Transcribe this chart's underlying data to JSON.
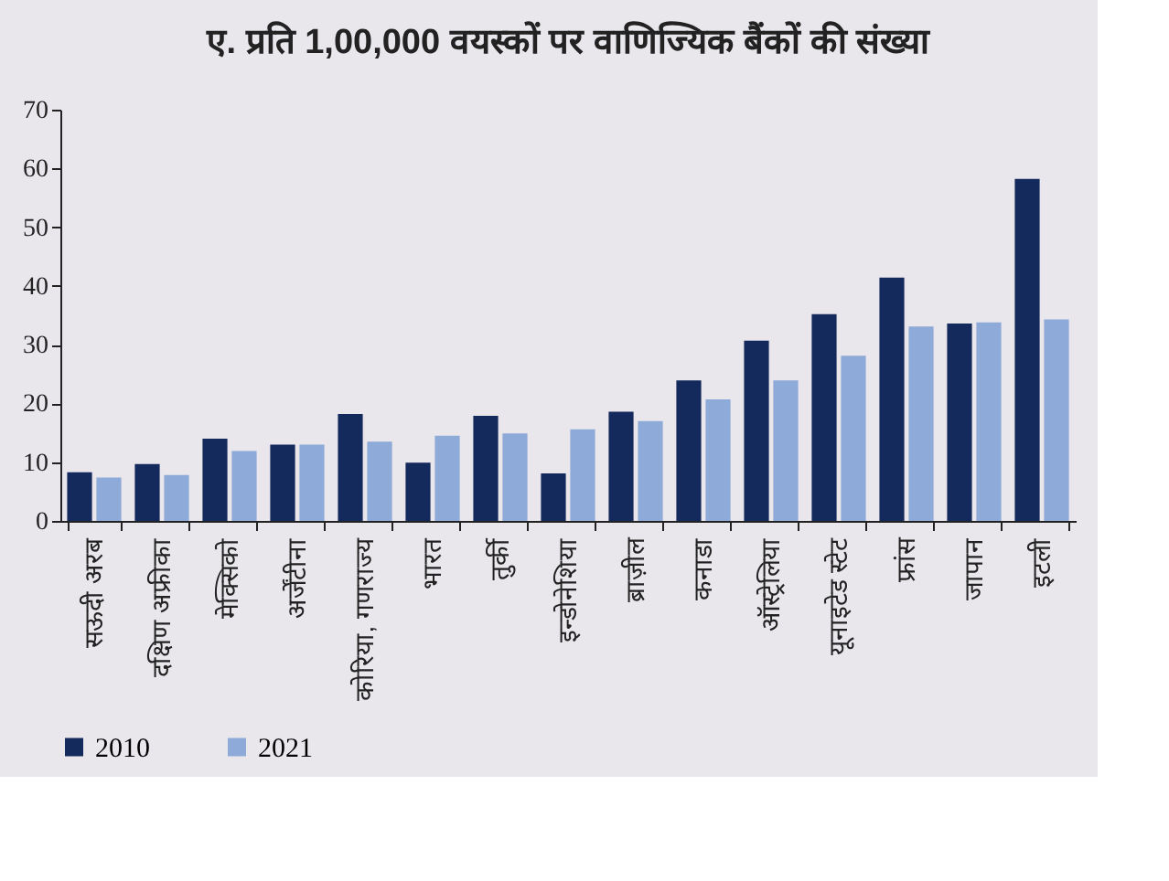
{
  "chart_data": {
    "type": "bar",
    "title": "ए. प्रति 1,00,000 वयस्कों पर वाणिज्यिक बैंकों की संख्या",
    "categories": [
      "सऊदी अरब",
      "दक्षिण अफ्रीका",
      "मेक्सिको",
      "अर्जेंटीना",
      "कोरिया, गणराज्य",
      "भारत",
      "तुर्की",
      "इन्डोनेशिया",
      "ब्राज़ील",
      "कनाडा",
      "ऑस्ट्रेलिया",
      "यूनाइटेड स्टेट",
      "फ्रांस",
      "जापान",
      "इटली"
    ],
    "series": [
      {
        "name": "2010",
        "color": "#142a5c",
        "values": [
          8.3,
          9.7,
          14.0,
          13.0,
          18.2,
          9.9,
          17.9,
          8.1,
          18.6,
          23.9,
          30.7,
          35.2,
          41.4,
          33.6,
          58.2
        ]
      },
      {
        "name": "2021",
        "color": "#8eaad8",
        "values": [
          7.4,
          7.8,
          11.9,
          13.0,
          13.5,
          14.5,
          14.9,
          15.6,
          17.0,
          20.7,
          23.9,
          28.1,
          33.1,
          33.8,
          34.3
        ]
      }
    ],
    "ylim": [
      0,
      70
    ],
    "yticks": [
      0,
      10,
      20,
      30,
      40,
      50,
      60,
      70
    ],
    "grid": false,
    "legend": "bottom"
  }
}
